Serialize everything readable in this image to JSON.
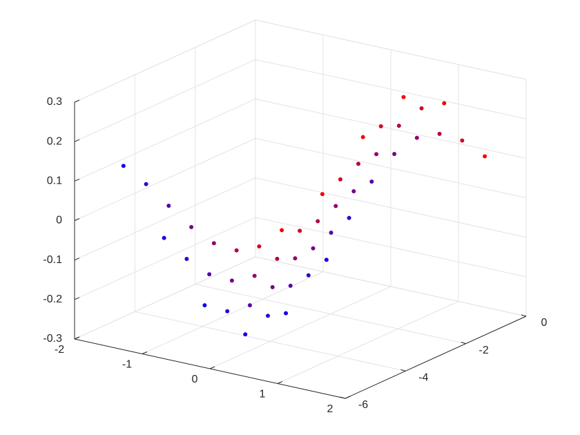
{
  "chart_data": {
    "type": "scatter3",
    "x": [
      -1.5,
      -1.5,
      -1.5,
      -1.5,
      -1.5,
      -1.5,
      -1.5,
      -1.5,
      -0.9,
      -0.9,
      -0.9,
      -0.9,
      -0.9,
      -0.9,
      -0.9,
      -0.9,
      -0.3,
      -0.3,
      -0.3,
      -0.3,
      -0.3,
      -0.3,
      -0.3,
      -0.3,
      0.3,
      0.3,
      0.3,
      0.3,
      0.3,
      0.3,
      0.3,
      0.3,
      0.9,
      0.9,
      0.9,
      0.9,
      0.9,
      0.9,
      0.9,
      0.9,
      1.5,
      1.5,
      1.5,
      1.5,
      1.5,
      1.5,
      1.5,
      1.5
    ],
    "y": [
      -5.5,
      -4.75,
      -4,
      -3.25,
      -2.5,
      -1.75,
      -1,
      -0.25,
      -5.5,
      -4.75,
      -4,
      -3.25,
      -2.5,
      -1.75,
      -1,
      -0.25,
      -5.5,
      -4.75,
      -4,
      -3.25,
      -2.5,
      -1.75,
      -1,
      -0.25,
      -5.5,
      -4.75,
      -4,
      -3.25,
      -2.5,
      -1.75,
      -1,
      -0.25,
      -5.5,
      -4.75,
      -4,
      -3.25,
      -2.5,
      -1.75,
      -1,
      -0.25,
      -5.5,
      -4.75,
      -4,
      -3.25,
      -2.5,
      -1.75,
      -1,
      -0.25
    ],
    "z": [
      0.14,
      0.068,
      -0.013,
      -0.093,
      -0.16,
      -0.204,
      -0.22,
      -0.205,
      -0.02,
      -0.099,
      -0.164,
      -0.206,
      -0.22,
      -0.203,
      -0.158,
      -0.091,
      -0.168,
      -0.209,
      -0.22,
      -0.2,
      -0.153,
      -0.085,
      -0.005,
      0.076,
      -0.219,
      -0.198,
      -0.148,
      -0.079,
      0.002,
      0.083,
      0.152,
      0.2,
      -0.143,
      -0.073,
      0.009,
      0.088,
      0.156,
      0.202,
      0.22,
      0.207,
      0.015,
      0.095,
      0.161,
      0.205,
      0.22,
      0.204,
      0.161,
      0.095
    ],
    "colormap": [
      "#0000ff",
      "#ff0000"
    ],
    "color_by": "y",
    "xlim": [
      -2,
      2
    ],
    "xticks": [
      -2,
      -1,
      0,
      1,
      2
    ],
    "ylim": [
      -6,
      0
    ],
    "yticks": [
      -6,
      -4,
      -2,
      0
    ],
    "zlim": [
      -0.3,
      0.3
    ],
    "zticks": [
      -0.3,
      -0.2,
      -0.1,
      0,
      0.1,
      0.2,
      0.3
    ],
    "grid": true
  }
}
